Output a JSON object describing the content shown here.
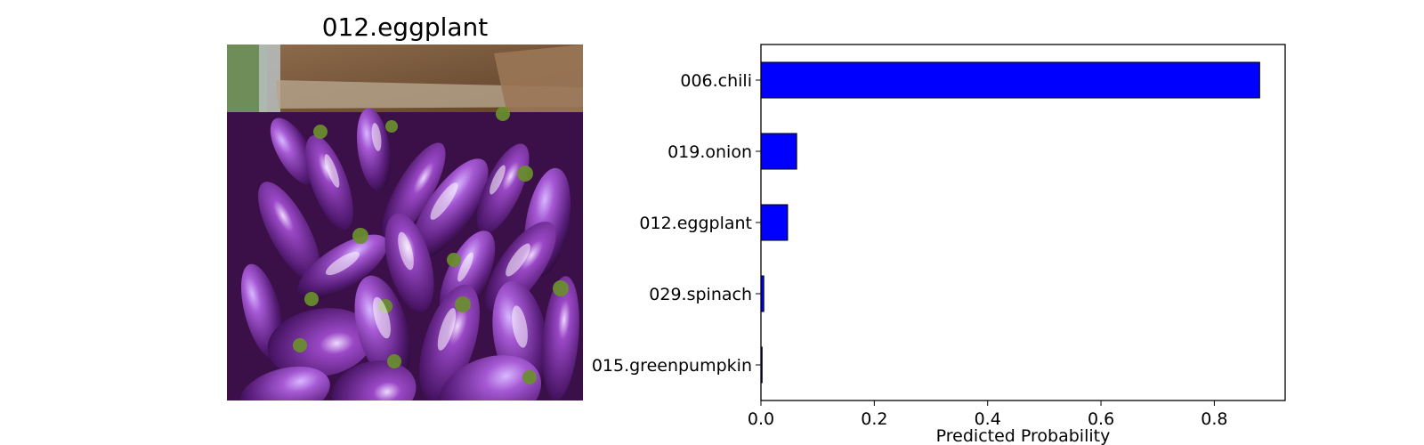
{
  "image_panel": {
    "title": "012.eggplant"
  },
  "chart_data": {
    "type": "bar",
    "orientation": "horizontal",
    "categories": [
      "006.chili",
      "019.onion",
      "012.eggplant",
      "029.spinach",
      "015.greenpumpkin"
    ],
    "values": [
      0.88,
      0.063,
      0.047,
      0.005,
      0.002
    ],
    "xlabel": "Predicted Probability",
    "ylabel": "",
    "xlim": [
      0,
      0.925
    ],
    "xticks": [
      0.0,
      0.2,
      0.4,
      0.6,
      0.8
    ],
    "xtick_labels": [
      "0.0",
      "0.2",
      "0.4",
      "0.6",
      "0.8"
    ],
    "grid": false,
    "bar_color": "#0000ff",
    "edge_color": "#000000"
  }
}
